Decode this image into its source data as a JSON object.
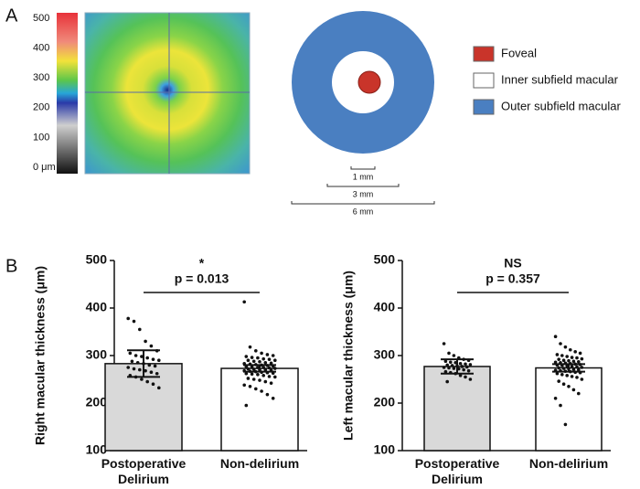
{
  "panel_labels": [
    "A",
    "B"
  ],
  "heatmap": {
    "colorbar_ticks": [
      500,
      400,
      300,
      200,
      100,
      {
        "value": 0,
        "label": "0 μm"
      }
    ]
  },
  "diagram": {
    "legend": [
      {
        "name": "Foveal",
        "color": "#c9342a"
      },
      {
        "name": "Inner subfield macular",
        "color": "#ffffff"
      },
      {
        "name": "Outer subfield macular",
        "color": "#4a7fc1"
      }
    ],
    "scale_bars": [
      {
        "value": 1,
        "label": "1 mm"
      },
      {
        "value": 3,
        "label": "3 mm"
      },
      {
        "value": 6,
        "label": "6 mm"
      }
    ]
  },
  "chart_data": [
    {
      "type": "bar",
      "ylabel": "Right macular thickness (μm)",
      "categories": [
        "Postoperative Delirium",
        "Non-delirium"
      ],
      "values": [
        283,
        273
      ],
      "errors": [
        28,
        7
      ],
      "colors": [
        "#d9d9d9",
        "#ffffff"
      ],
      "points": [
        [
          378,
          372,
          355,
          330,
          320,
          310,
          305,
          300,
          298,
          295,
          292,
          290,
          288,
          285,
          283,
          280,
          278,
          275,
          272,
          270,
          268,
          265,
          262,
          258,
          255,
          250,
          245,
          240,
          232
        ],
        [
          413,
          318,
          310,
          305,
          302,
          300,
          298,
          296,
          295,
          293,
          292,
          290,
          290,
          288,
          287,
          285,
          284,
          283,
          282,
          281,
          280,
          279,
          278,
          277,
          276,
          275,
          275,
          274,
          273,
          272,
          271,
          270,
          270,
          269,
          268,
          267,
          266,
          265,
          264,
          263,
          262,
          261,
          260,
          258,
          256,
          255,
          252,
          250,
          248,
          245,
          242,
          238,
          235,
          230,
          225,
          218,
          210,
          195
        ]
      ],
      "significance": "*",
      "p_label": "p = 0.013",
      "ylim": [
        100,
        500
      ],
      "yticks": [
        100,
        200,
        300,
        400,
        500
      ]
    },
    {
      "type": "bar",
      "ylabel": "Left macular thickness (μm)",
      "categories": [
        "Postoperative Delirium",
        "Non-delirium"
      ],
      "values": [
        277,
        274
      ],
      "errors": [
        15,
        8
      ],
      "colors": [
        "#d9d9d9",
        "#ffffff"
      ],
      "points": [
        [
          325,
          305,
          300,
          295,
          292,
          290,
          288,
          286,
          285,
          283,
          282,
          281,
          280,
          279,
          278,
          277,
          276,
          275,
          274,
          273,
          272,
          270,
          268,
          266,
          264,
          262,
          258,
          255,
          250,
          245
        ],
        [
          340,
          325,
          318,
          312,
          308,
          305,
          302,
          300,
          298,
          296,
          295,
          293,
          292,
          290,
          289,
          288,
          287,
          286,
          285,
          284,
          283,
          282,
          281,
          280,
          279,
          278,
          277,
          276,
          275,
          274,
          273,
          272,
          271,
          270,
          269,
          268,
          267,
          266,
          265,
          264,
          262,
          260,
          258,
          256,
          254,
          250,
          246,
          240,
          235,
          228,
          220,
          210,
          195,
          155
        ]
      ],
      "significance": "NS",
      "p_label": "p = 0.357",
      "ylim": [
        100,
        500
      ],
      "yticks": [
        100,
        200,
        300,
        400,
        500
      ]
    }
  ]
}
